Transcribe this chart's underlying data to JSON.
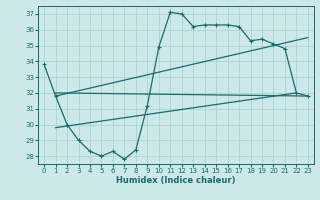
{
  "xlabel": "Humidex (Indice chaleur)",
  "bg_color": "#cce8e8",
  "line_color": "#1a6b6b",
  "grid_color": "#aad4d4",
  "xlim": [
    -0.5,
    23.5
  ],
  "ylim": [
    27.5,
    37.5
  ],
  "yticks": [
    28,
    29,
    30,
    31,
    32,
    33,
    34,
    35,
    36,
    37
  ],
  "xticks": [
    0,
    1,
    2,
    3,
    4,
    5,
    6,
    7,
    8,
    9,
    10,
    11,
    12,
    13,
    14,
    15,
    16,
    17,
    18,
    19,
    20,
    21,
    22,
    23
  ],
  "line1_x": [
    0,
    1,
    2,
    3,
    4,
    5,
    6,
    7,
    8,
    9,
    10,
    11,
    12,
    13,
    14,
    15,
    16,
    17,
    18,
    19,
    20,
    21,
    22,
    23
  ],
  "line1_y": [
    33.8,
    31.8,
    30.0,
    29.0,
    28.3,
    28.0,
    28.3,
    27.8,
    28.4,
    31.2,
    34.9,
    37.1,
    37.0,
    36.2,
    36.3,
    36.3,
    36.3,
    36.2,
    35.3,
    35.4,
    35.1,
    34.8,
    32.0,
    31.8
  ],
  "line2_x": [
    1,
    23
  ],
  "line2_y": [
    31.8,
    35.5
  ],
  "line3_x": [
    1,
    22
  ],
  "line3_y": [
    29.8,
    32.0
  ],
  "line4_x": [
    1,
    23
  ],
  "line4_y": [
    32.0,
    31.8
  ]
}
